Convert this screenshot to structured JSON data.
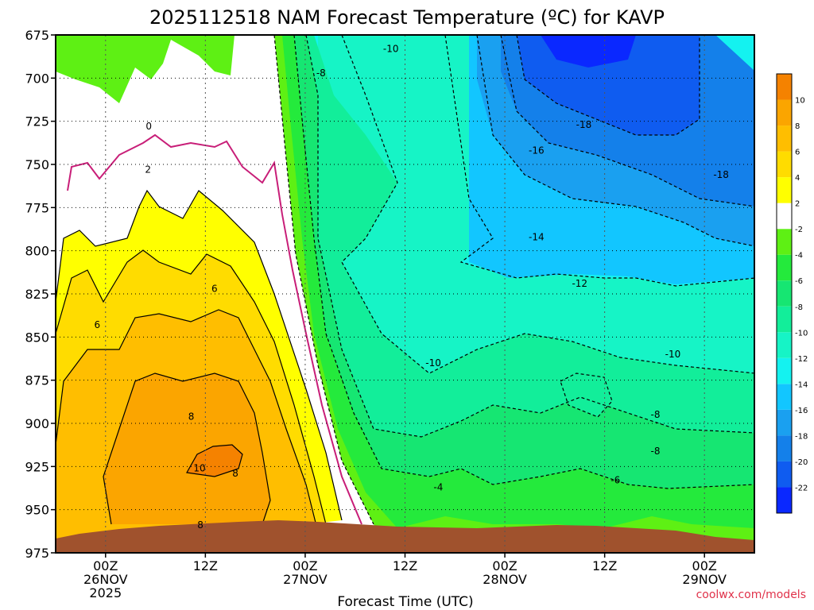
{
  "chart_data": {
    "type": "heatmap",
    "title": "2025112518 NAM Forecast Temperature (ºC) for KAVP",
    "xlabel": "Forecast Time (UTC)",
    "ylabel": "",
    "credit": "coolwx.com/models",
    "y_axis": {
      "ticks": [
        675,
        700,
        725,
        750,
        775,
        800,
        825,
        850,
        875,
        900,
        925,
        950,
        975
      ],
      "range": [
        975,
        675
      ],
      "inverted": true
    },
    "x_axis": {
      "range_hours": [
        0,
        84
      ],
      "ticks": [
        {
          "hour": 6,
          "line1": "00Z",
          "line2": "26NOV",
          "line3": "2025"
        },
        {
          "hour": 18,
          "line1": "12Z",
          "line2": "",
          "line3": ""
        },
        {
          "hour": 30,
          "line1": "00Z",
          "line2": "27NOV",
          "line3": ""
        },
        {
          "hour": 42,
          "line1": "12Z",
          "line2": "",
          "line3": ""
        },
        {
          "hour": 54,
          "line1": "00Z",
          "line2": "28NOV",
          "line3": ""
        },
        {
          "hour": 66,
          "line1": "12Z",
          "line2": "",
          "line3": ""
        },
        {
          "hour": 78,
          "line1": "00Z",
          "line2": "29NOV",
          "line3": ""
        }
      ]
    },
    "grid": true,
    "colorbar": {
      "placement": "right",
      "bins": [
        {
          "lo": -24,
          "hi": -22,
          "color": "#0a28ff",
          "label": "-22"
        },
        {
          "lo": -22,
          "hi": -20,
          "color": "#0f5cf0",
          "label": "-20"
        },
        {
          "lo": -20,
          "hi": -18,
          "color": "#1480ea",
          "label": "-18"
        },
        {
          "lo": -18,
          "hi": -16,
          "color": "#1aa0f0",
          "label": "-16"
        },
        {
          "lo": -16,
          "hi": -14,
          "color": "#12c6ff",
          "label": "-14"
        },
        {
          "lo": -14,
          "hi": -12,
          "color": "#14f2f0",
          "label": "-12"
        },
        {
          "lo": -12,
          "hi": -10,
          "color": "#16f4c6",
          "label": "-10"
        },
        {
          "lo": -10,
          "hi": -8,
          "color": "#12ee9a",
          "label": "-8"
        },
        {
          "lo": -8,
          "hi": -6,
          "color": "#16e672",
          "label": "-6"
        },
        {
          "lo": -6,
          "hi": -4,
          "color": "#24ea3c",
          "label": "-4"
        },
        {
          "lo": -4,
          "hi": -2,
          "color": "#5ef014",
          "label": "-2"
        },
        {
          "lo": -2,
          "hi": 2,
          "color": "#ffffff",
          "label": "2"
        },
        {
          "lo": 2,
          "hi": 4,
          "color": "#ffff00",
          "label": "4"
        },
        {
          "lo": 4,
          "hi": 6,
          "color": "#ffdc00",
          "label": "6"
        },
        {
          "lo": 6,
          "hi": 8,
          "color": "#ffbe00",
          "label": "8"
        },
        {
          "lo": 8,
          "hi": 10,
          "color": "#fba500",
          "label": "10"
        },
        {
          "lo": 10,
          "hi": 12,
          "color": "#f58200",
          "label": ""
        }
      ]
    },
    "terrain_color": "#a0522d",
    "freezing_line_color": "#c81e78",
    "contour_labels": [
      {
        "hour": 11.2,
        "p": 728,
        "text": "0"
      },
      {
        "hour": 11.1,
        "p": 753,
        "text": "2"
      },
      {
        "hour": 19.1,
        "p": 822,
        "text": "6"
      },
      {
        "hour": 5.0,
        "p": 843,
        "text": "6"
      },
      {
        "hour": 16.3,
        "p": 896,
        "text": "8"
      },
      {
        "hour": 17.3,
        "p": 926,
        "text": "10"
      },
      {
        "hour": 21.6,
        "p": 929,
        "text": "8"
      },
      {
        "hour": 17.4,
        "p": 959,
        "text": "8"
      },
      {
        "hour": 40.3,
        "p": 683,
        "text": "-10"
      },
      {
        "hour": 31.9,
        "p": 697,
        "text": "-8"
      },
      {
        "hour": 45.4,
        "p": 865,
        "text": "-10"
      },
      {
        "hour": 46.0,
        "p": 937,
        "text": "-4"
      },
      {
        "hour": 57.8,
        "p": 742,
        "text": "-16"
      },
      {
        "hour": 63.5,
        "p": 727,
        "text": "-18"
      },
      {
        "hour": 57.8,
        "p": 792,
        "text": "-14"
      },
      {
        "hour": 63.0,
        "p": 819,
        "text": "-12"
      },
      {
        "hour": 74.2,
        "p": 860,
        "text": "-10"
      },
      {
        "hour": 72.1,
        "p": 895,
        "text": "-8"
      },
      {
        "hour": 72.1,
        "p": 916,
        "text": "-8"
      },
      {
        "hour": 67.3,
        "p": 933,
        "text": "-6"
      },
      {
        "hour": 80.0,
        "p": 756,
        "text": "-18"
      }
    ]
  }
}
